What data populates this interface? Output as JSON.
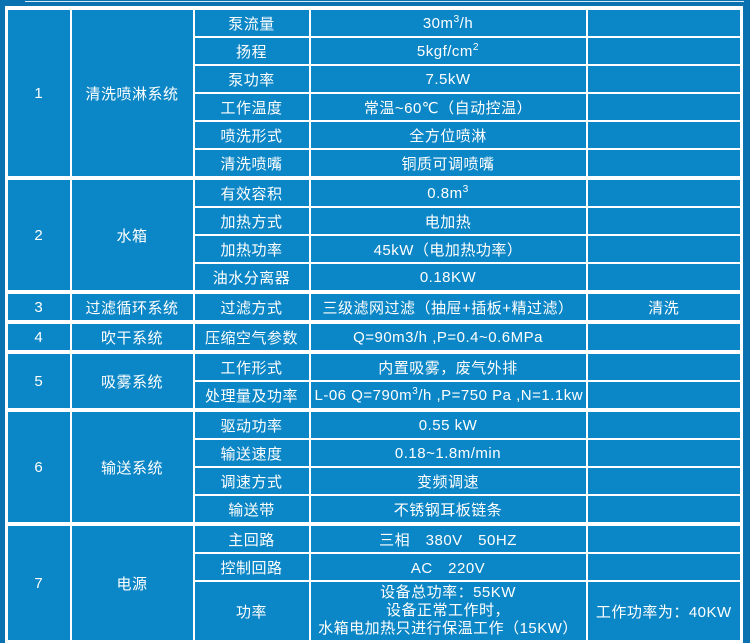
{
  "colors": {
    "cell_bg": "#0b86c6",
    "page_bg": "#0a72b0",
    "border": "#ffffff",
    "text": "#ffffff"
  },
  "table": {
    "sections": [
      {
        "no": "1",
        "system": "清洗喷淋系统",
        "rows": [
          {
            "param": "泵流量",
            "value": "30m³/h",
            "remark": ""
          },
          {
            "param": "扬程",
            "value": "5kgf/cm²",
            "remark": ""
          },
          {
            "param": "泵功率",
            "value": "7.5kW",
            "remark": ""
          },
          {
            "param": "工作温度",
            "value": "常温~60℃（自动控温）",
            "remark": ""
          },
          {
            "param": "喷洗形式",
            "value": "全方位喷淋",
            "remark": ""
          },
          {
            "param": "清洗喷嘴",
            "value": "铜质可调喷嘴",
            "remark": ""
          }
        ]
      },
      {
        "no": "2",
        "system": "水箱",
        "rows": [
          {
            "param": "有效容积",
            "value": "0.8m³",
            "remark": ""
          },
          {
            "param": "加热方式",
            "value": "电加热",
            "remark": ""
          },
          {
            "param": "加热功率",
            "value": "45kW（电加热功率）",
            "remark": ""
          },
          {
            "param": "油水分离器",
            "value": "0.18KW",
            "remark": ""
          }
        ]
      },
      {
        "no": "3",
        "system": "过滤循环系统",
        "rows": [
          {
            "param": "过滤方式",
            "value": "三级滤网过滤（抽屉+插板+精过滤）",
            "remark": "清洗"
          }
        ]
      },
      {
        "no": "4",
        "system": "吹干系统",
        "rows": [
          {
            "param": "压缩空气参数",
            "value": "Q=90m3/h ,P=0.4~0.6MPa",
            "remark": ""
          }
        ]
      },
      {
        "no": "5",
        "system": "吸雾系统",
        "rows": [
          {
            "param": "工作形式",
            "value": "内置吸雾，废气外排",
            "remark": ""
          },
          {
            "param": "处理量及功率",
            "value": "L-06 Q=790m³/h ,P=750 Pa ,N=1.1kw",
            "remark": ""
          }
        ]
      },
      {
        "no": "6",
        "system": "输送系统",
        "rows": [
          {
            "param": "驱动功率",
            "value": "0.55 kW",
            "remark": ""
          },
          {
            "param": "输送速度",
            "value": "0.18~1.8m/min",
            "remark": ""
          },
          {
            "param": "调速方式",
            "value": "变频调速",
            "remark": ""
          },
          {
            "param": "输送带",
            "value": "不锈钢耳板链条",
            "remark": ""
          }
        ]
      },
      {
        "no": "7",
        "system": "电源",
        "rows": [
          {
            "param": "主回路",
            "value": "三相　380V　50HZ",
            "remark": ""
          },
          {
            "param": "控制回路",
            "value": "AC　220V",
            "remark": ""
          },
          {
            "param": "功率",
            "value_lines": [
              "设备总功率：55KW",
              "设备正常工作时，",
              "水箱电加热只进行保温工作（15KW）"
            ],
            "remark": "工作功率为：40KW"
          }
        ]
      }
    ]
  }
}
